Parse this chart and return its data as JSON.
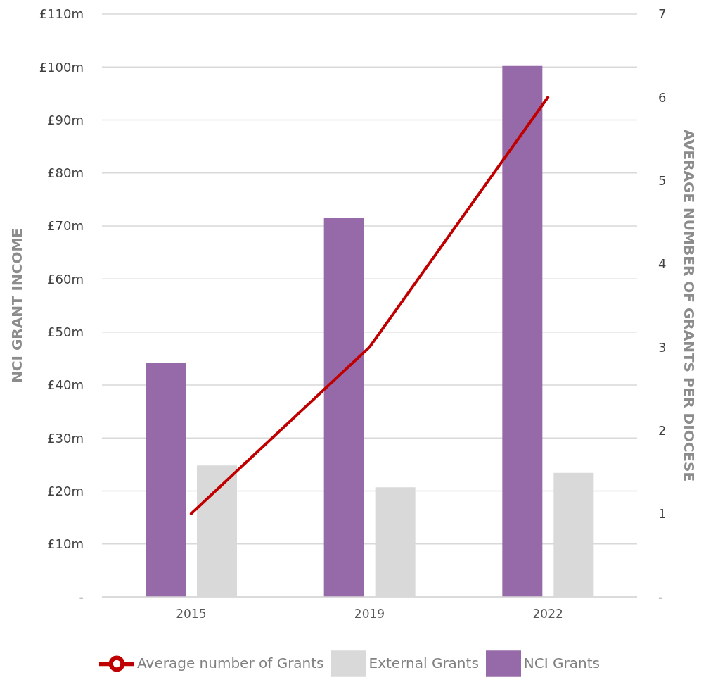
{
  "chart_data": {
    "type": "bar",
    "categories": [
      "2015",
      "2019",
      "2022"
    ],
    "series": [
      {
        "name": "NCI Grants",
        "color": "#9669a8",
        "values": [
          44.1,
          71.5,
          100.2
        ]
      },
      {
        "name": "External Grants",
        "color": "#d9d9d9",
        "values": [
          24.8,
          20.7,
          23.4
        ]
      },
      {
        "name": "Average number of Grants",
        "type": "line",
        "axis": "y2",
        "color": "#c00000",
        "values": [
          1,
          3,
          6
        ]
      }
    ],
    "ylabel": "NCI GRANT INCOME",
    "y2label": "AVERAGE NUMBER OF GRANTS PER DIOCESE",
    "ylim": [
      0,
      110
    ],
    "yticks": [
      {
        "value": 0,
        "label": "-"
      },
      {
        "value": 10,
        "label": "£10m"
      },
      {
        "value": 20,
        "label": "£20m"
      },
      {
        "value": 30,
        "label": "£30m"
      },
      {
        "value": 40,
        "label": "£40m"
      },
      {
        "value": 50,
        "label": "£50m"
      },
      {
        "value": 60,
        "label": "£60m"
      },
      {
        "value": 70,
        "label": "£70m"
      },
      {
        "value": 80,
        "label": "£80m"
      },
      {
        "value": 90,
        "label": "£90m"
      },
      {
        "value": 100,
        "label": "£100m"
      },
      {
        "value": 110,
        "label": "£110m"
      }
    ],
    "y2lim": [
      0,
      7
    ],
    "y2ticks": [
      {
        "value": 0,
        "label": "-"
      },
      1,
      2,
      3,
      4,
      5,
      6,
      7
    ],
    "grid": "y",
    "legend": "bottom",
    "marker": "none",
    "line_style": "solid"
  }
}
